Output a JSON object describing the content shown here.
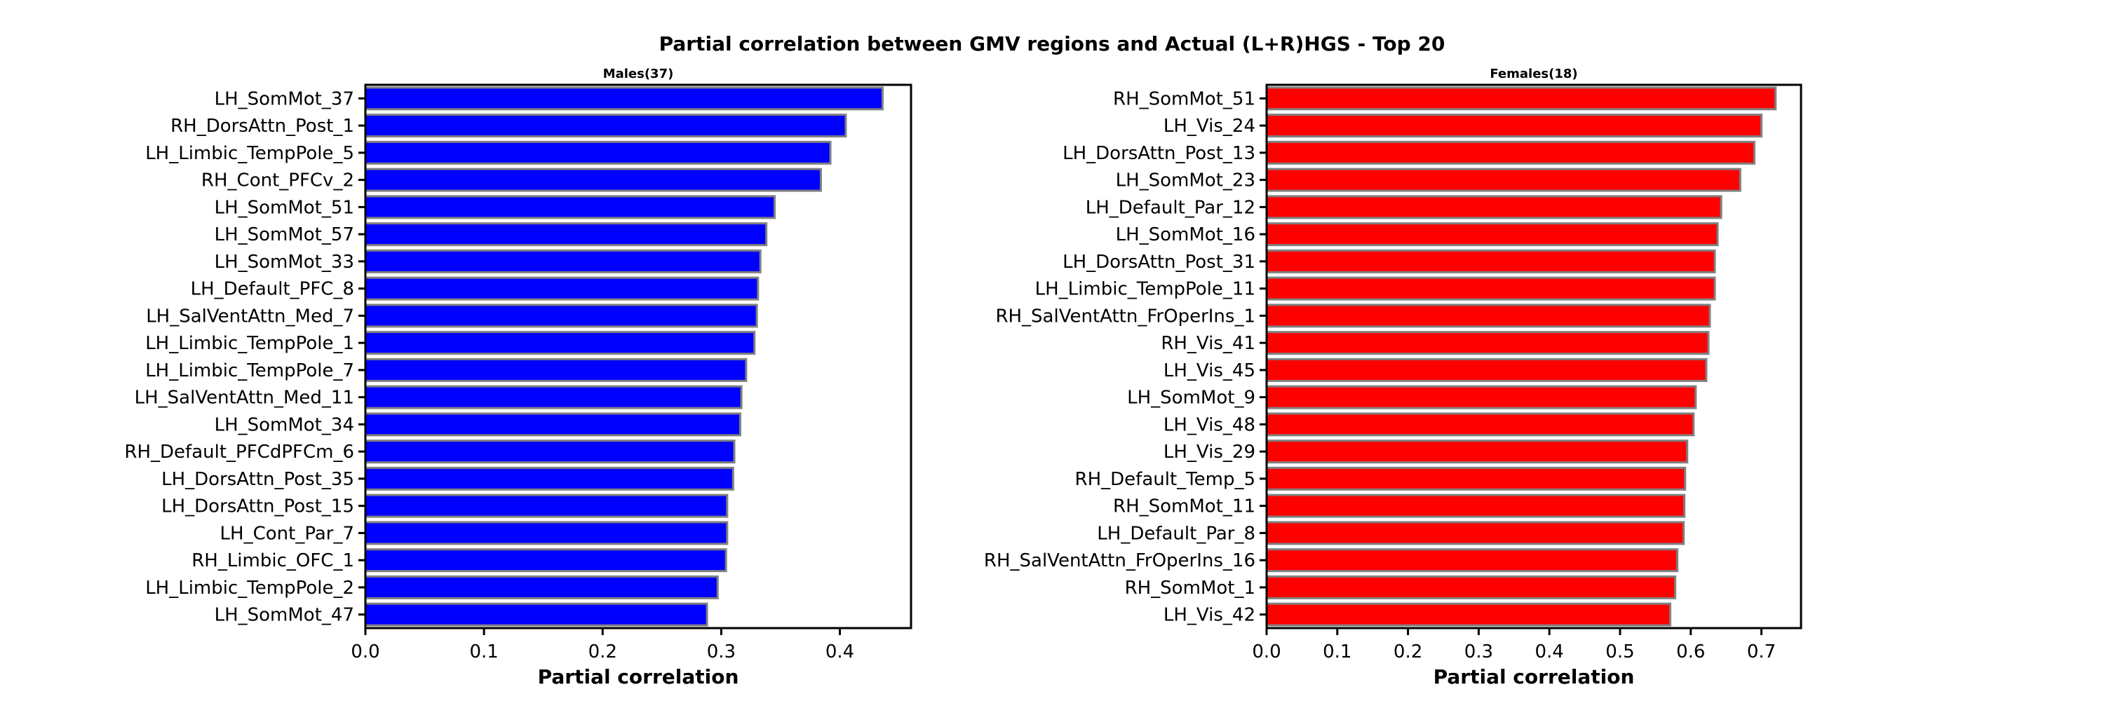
{
  "title": "Partial correlation between GMV regions and Actual (L+R)HGS - Top 20",
  "chart_data": [
    {
      "type": "bar",
      "orientation": "horizontal",
      "title": "Males(37)",
      "xlabel": "Partial correlation",
      "ylabel": "",
      "color": "#0000ff",
      "edge_color": "#808080",
      "xlim": [
        0,
        0.46
      ],
      "xticks": [
        "0.0",
        "0.1",
        "0.2",
        "0.3",
        "0.4"
      ],
      "categories": [
        "LH_SomMot_37",
        "RH_DorsAttn_Post_1",
        "LH_Limbic_TempPole_5",
        "RH_Cont_PFCv_2",
        "LH_SomMot_51",
        "LH_SomMot_57",
        "LH_SomMot_33",
        "LH_Default_PFC_8",
        "LH_SalVentAttn_Med_7",
        "LH_Limbic_TempPole_1",
        "LH_Limbic_TempPole_7",
        "LH_SalVentAttn_Med_11",
        "LH_SomMot_34",
        "RH_Default_PFCdPFCm_6",
        "LH_DorsAttn_Post_35",
        "LH_DorsAttn_Post_15",
        "LH_Cont_Par_7",
        "RH_Limbic_OFC_1",
        "LH_Limbic_TempPole_2",
        "LH_SomMot_47"
      ],
      "values": [
        0.436,
        0.405,
        0.392,
        0.384,
        0.345,
        0.338,
        0.333,
        0.331,
        0.33,
        0.328,
        0.321,
        0.317,
        0.316,
        0.311,
        0.31,
        0.305,
        0.305,
        0.304,
        0.297,
        0.288
      ],
      "grid": false
    },
    {
      "type": "bar",
      "orientation": "horizontal",
      "title": "Females(18)",
      "xlabel": "Partial correlation",
      "ylabel": "",
      "color": "#ff0000",
      "edge_color": "#808080",
      "xlim": [
        0,
        0.756
      ],
      "xticks": [
        "0.0",
        "0.1",
        "0.2",
        "0.3",
        "0.4",
        "0.5",
        "0.6",
        "0.7"
      ],
      "categories": [
        "RH_SomMot_51",
        "LH_Vis_24",
        "LH_DorsAttn_Post_13",
        "LH_SomMot_23",
        "LH_Default_Par_12",
        "LH_SomMot_16",
        "LH_DorsAttn_Post_31",
        "LH_Limbic_TempPole_11",
        "RH_SalVentAttn_FrOperIns_1",
        "RH_Vis_41",
        "LH_Vis_45",
        "LH_SomMot_9",
        "LH_Vis_48",
        "LH_Vis_29",
        "RH_Default_Temp_5",
        "RH_SomMot_11",
        "LH_Default_Par_8",
        "RH_SalVentAttn_FrOperIns_16",
        "RH_SomMot_1",
        "LH_Vis_42"
      ],
      "values": [
        0.72,
        0.7,
        0.69,
        0.67,
        0.643,
        0.638,
        0.634,
        0.634,
        0.627,
        0.625,
        0.622,
        0.607,
        0.604,
        0.595,
        0.592,
        0.591,
        0.59,
        0.581,
        0.578,
        0.571
      ],
      "grid": false
    }
  ]
}
